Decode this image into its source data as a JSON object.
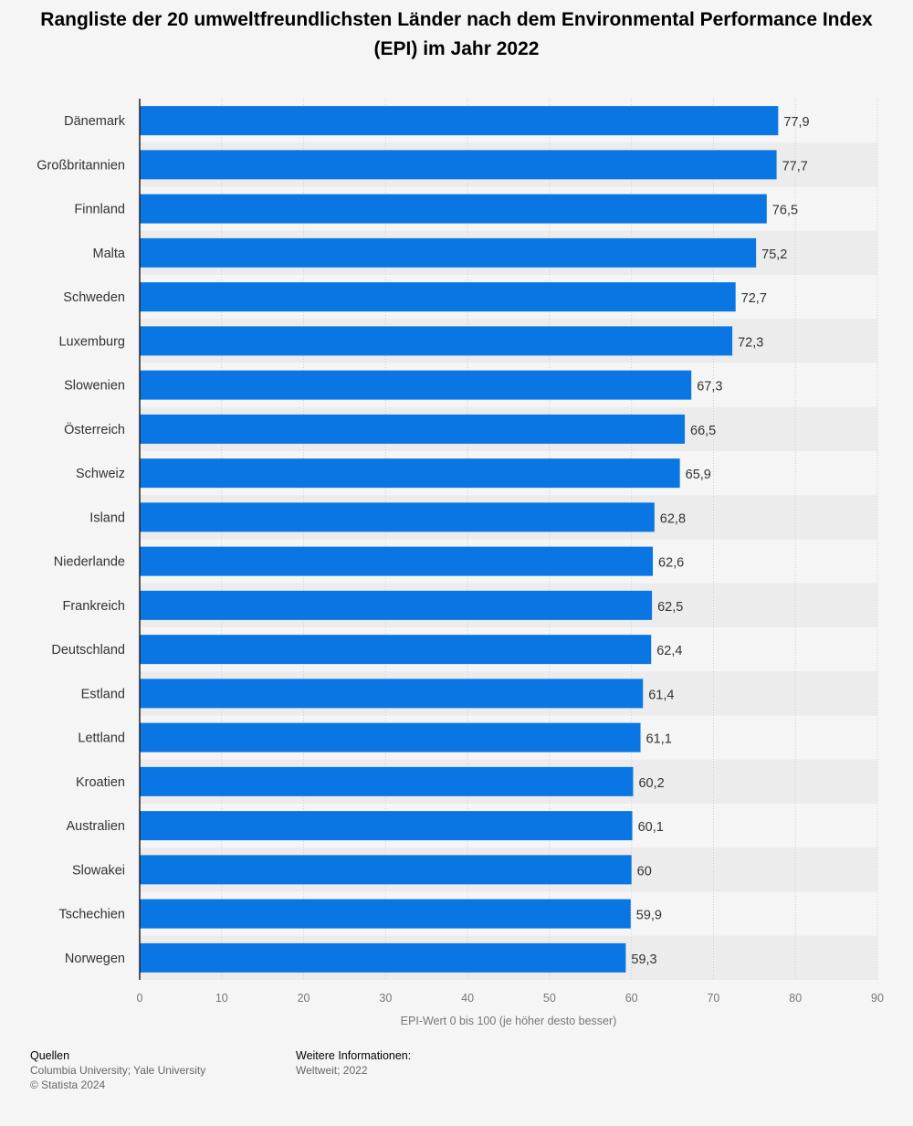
{
  "title": "Rangliste der 20 umweltfreundlichsten Länder nach dem Environmental Performance Index (EPI) im Jahr 2022",
  "chart_data": {
    "type": "bar",
    "orientation": "horizontal",
    "title": "Rangliste der 20 umweltfreundlichsten Länder nach dem Environmental Performance Index (EPI) im Jahr 2022",
    "xlabel": "EPI-Wert 0 bis 100 (je höher desto besser)",
    "ylabel": "",
    "xlim": [
      0,
      90
    ],
    "ticks": [
      "0",
      "10",
      "20",
      "30",
      "40",
      "50",
      "60",
      "70",
      "80",
      "90"
    ],
    "grid": true,
    "categories": [
      "Dänemark",
      "Großbritannien",
      "Finnland",
      "Malta",
      "Schweden",
      "Luxemburg",
      "Slowenien",
      "Österreich",
      "Schweiz",
      "Island",
      "Niederlande",
      "Frankreich",
      "Deutschland",
      "Estland",
      "Lettland",
      "Kroatien",
      "Australien",
      "Slowakei",
      "Tschechien",
      "Norwegen"
    ],
    "values": [
      77.9,
      77.7,
      76.5,
      75.2,
      72.7,
      72.3,
      67.3,
      66.5,
      65.9,
      62.8,
      62.6,
      62.5,
      62.4,
      61.4,
      61.1,
      60.2,
      60.1,
      60,
      59.9,
      59.3
    ],
    "value_labels": [
      "77,9",
      "77,7",
      "76,5",
      "75,2",
      "72,7",
      "72,3",
      "67,3",
      "66,5",
      "65,9",
      "62,8",
      "62,6",
      "62,5",
      "62,4",
      "61,4",
      "61,1",
      "60,2",
      "60,1",
      "60",
      "59,9",
      "59,3"
    ],
    "colors": {
      "bar": "#0a76e3",
      "band": "#ececec",
      "grid": "#cfcfcf",
      "axis": "#222222"
    }
  },
  "footer": {
    "sources_heading": "Quellen",
    "sources": "Columbia University; Yale University",
    "copyright": "© Statista 2024",
    "info_heading": "Weitere Informationen:",
    "info": "Weltweit; 2022"
  }
}
